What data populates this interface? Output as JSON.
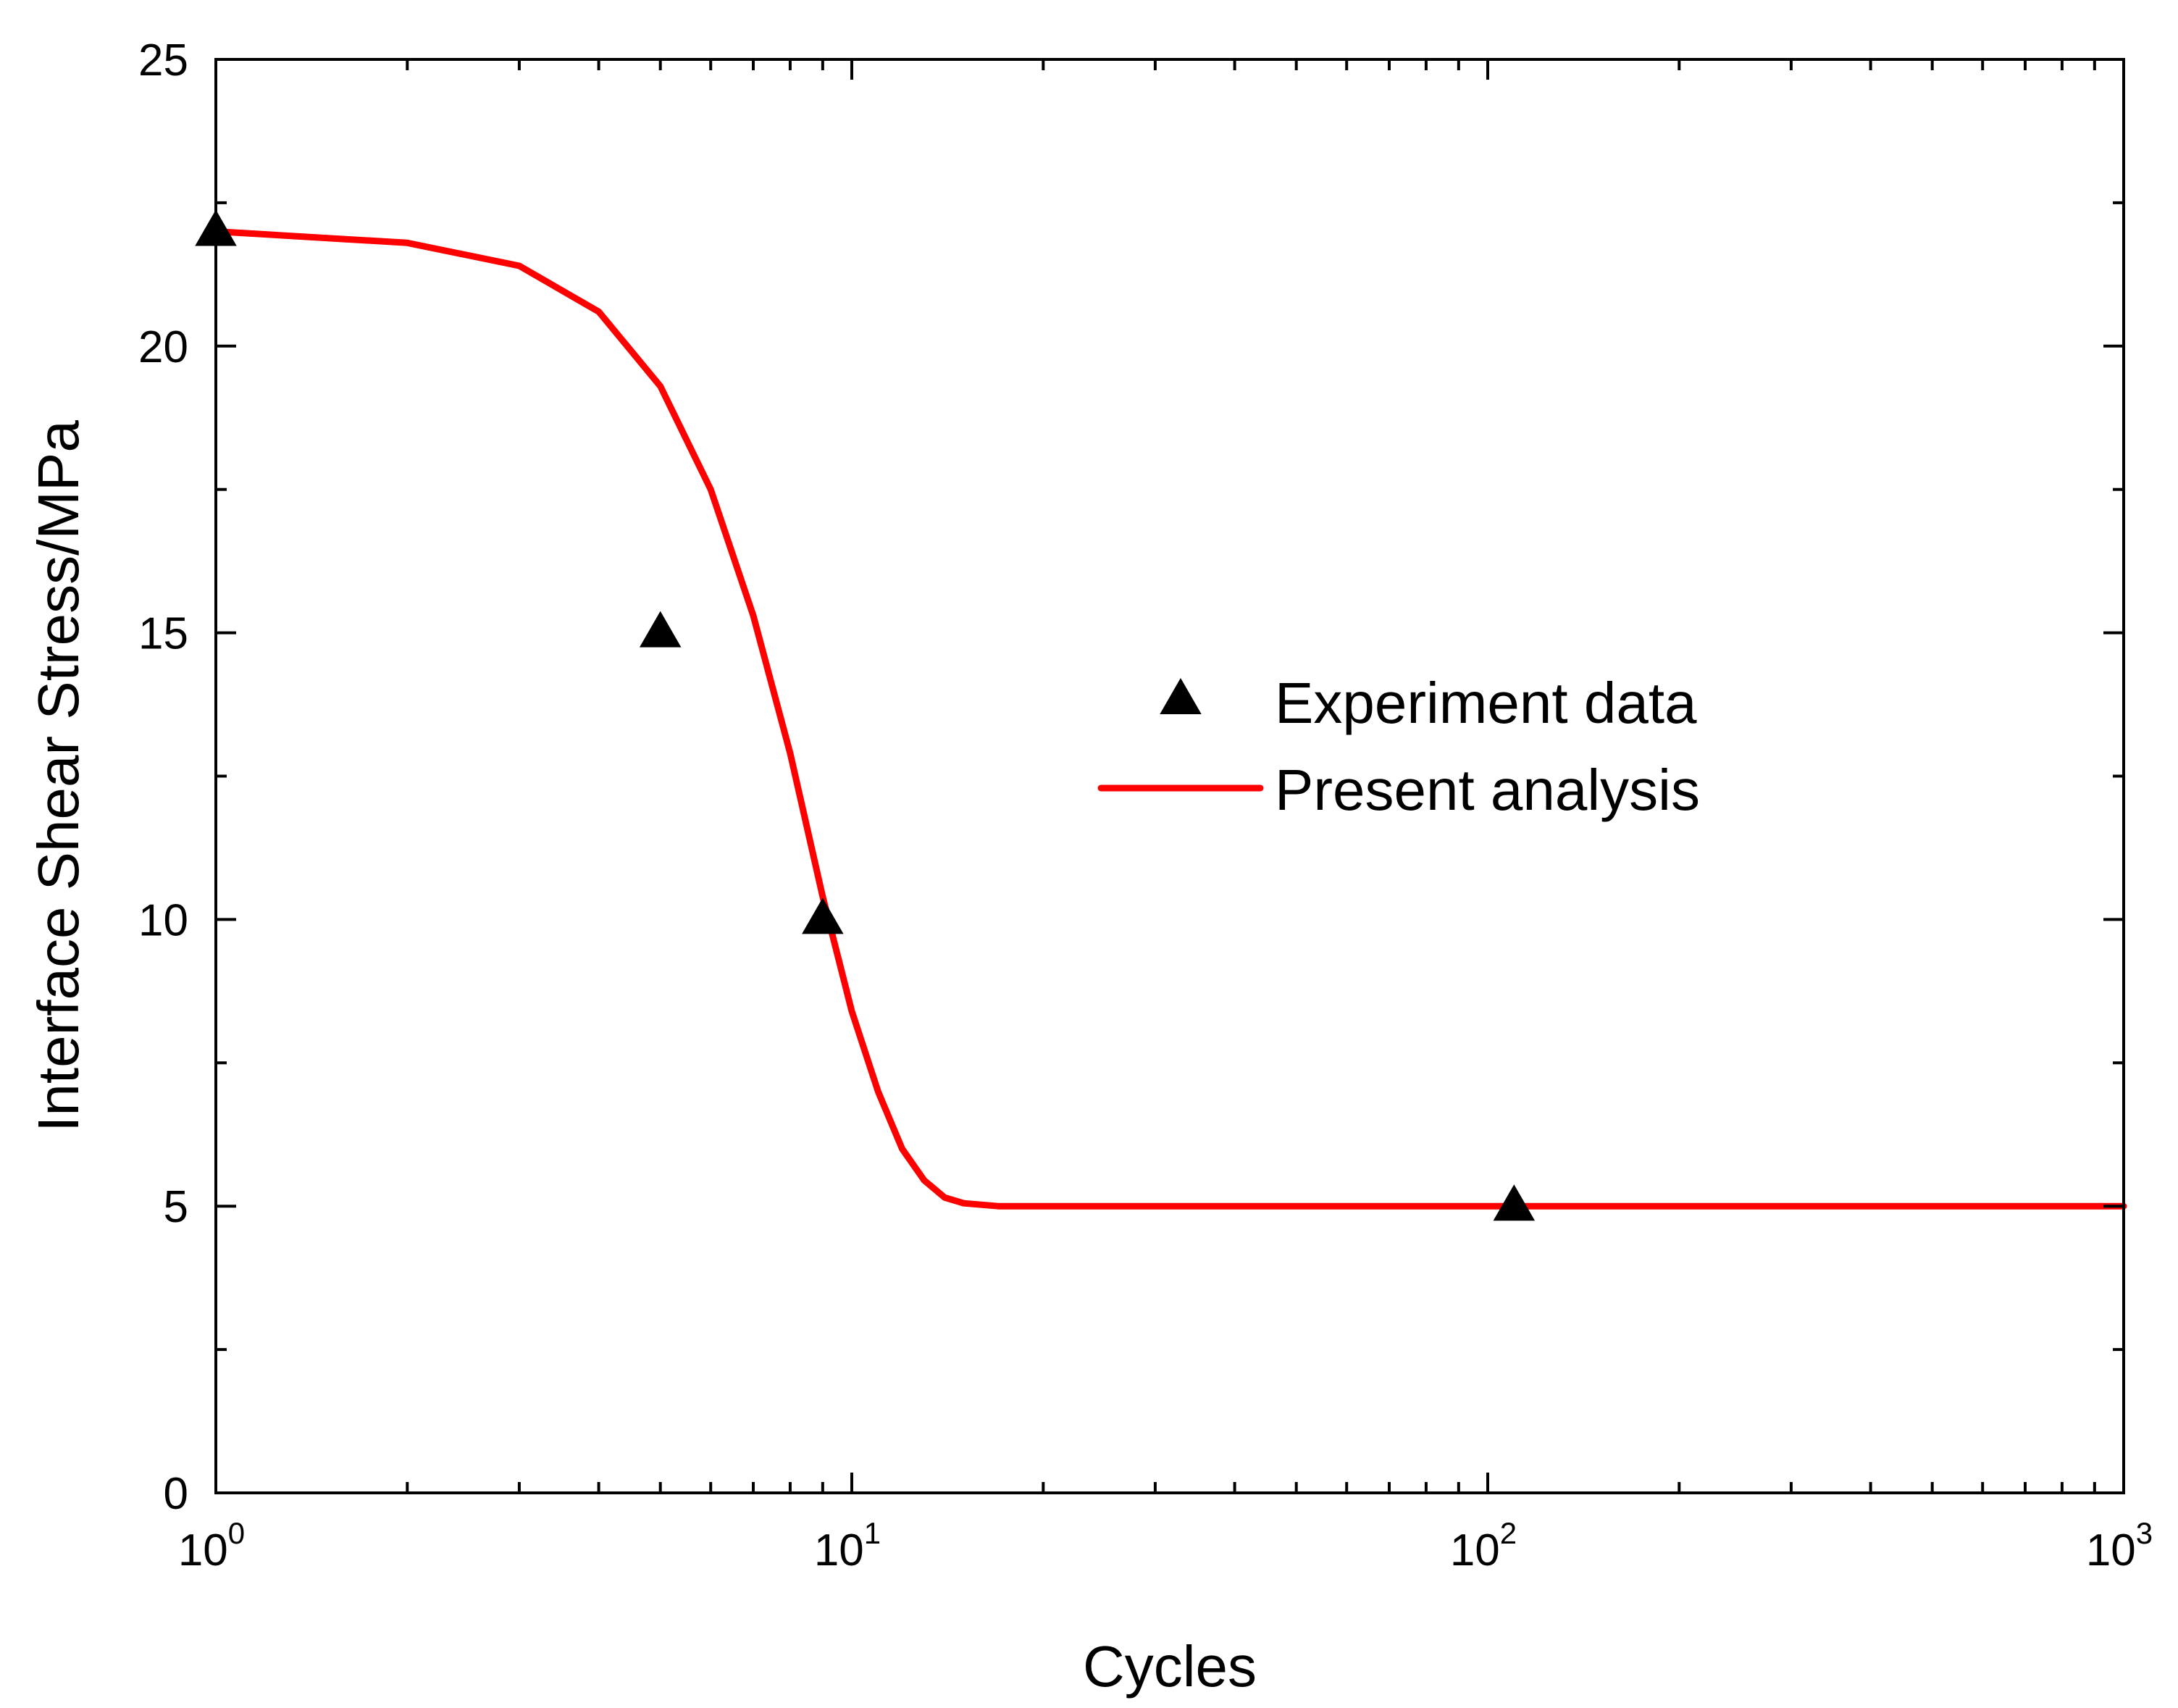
{
  "chart_data": {
    "type": "line",
    "title": "",
    "xlabel": "Cycles",
    "ylabel": "Interface Shear Stress/MPa",
    "xscale": "log",
    "xlim": [
      1,
      1000
    ],
    "ylim": [
      0,
      25
    ],
    "grid": false,
    "x_ticks": [
      {
        "value": 1,
        "base": "10",
        "exp": "0"
      },
      {
        "value": 10,
        "base": "10",
        "exp": "1"
      },
      {
        "value": 100,
        "base": "10",
        "exp": "2"
      },
      {
        "value": 1000,
        "base": "10",
        "exp": "3"
      }
    ],
    "y_ticks": [
      {
        "value": 0,
        "label": "0"
      },
      {
        "value": 5,
        "label": "5"
      },
      {
        "value": 10,
        "label": "10"
      },
      {
        "value": 15,
        "label": "15"
      },
      {
        "value": 20,
        "label": "20"
      },
      {
        "value": 25,
        "label": "25"
      }
    ],
    "legend_position": "center-right",
    "series": [
      {
        "name": "Experiment data",
        "kind": "scatter",
        "marker": "triangle",
        "color": "#000000",
        "points": [
          [
            1,
            22
          ],
          [
            5,
            15
          ],
          [
            9,
            10
          ],
          [
            110,
            5
          ]
        ]
      },
      {
        "name": "Present analysis",
        "kind": "line",
        "color": "#ff0000",
        "points": [
          [
            1,
            22.0
          ],
          [
            2,
            21.8
          ],
          [
            3,
            21.4
          ],
          [
            4,
            20.6
          ],
          [
            5,
            19.3
          ],
          [
            6,
            17.5
          ],
          [
            7,
            15.3
          ],
          [
            8,
            12.9
          ],
          [
            9,
            10.4
          ],
          [
            10,
            8.4
          ],
          [
            11,
            7.0
          ],
          [
            12,
            6.0
          ],
          [
            13,
            5.45
          ],
          [
            14,
            5.15
          ],
          [
            15,
            5.05
          ],
          [
            17,
            5.0
          ],
          [
            20,
            5.0
          ],
          [
            50,
            5.0
          ],
          [
            100,
            5.0
          ],
          [
            1000,
            5.0
          ]
        ]
      }
    ]
  }
}
